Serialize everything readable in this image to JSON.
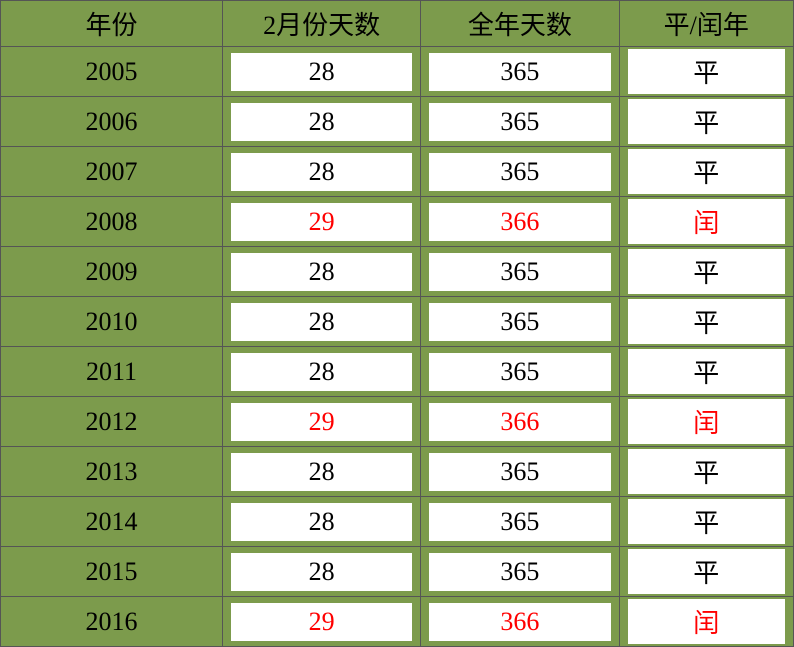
{
  "headers": {
    "year": "年份",
    "feb_days": "2月份天数",
    "year_days": "全年天数",
    "type": "平/闰年"
  },
  "rows": [
    {
      "year": "2005",
      "feb": "28",
      "days": "365",
      "type": "平",
      "leap": false
    },
    {
      "year": "2006",
      "feb": "28",
      "days": "365",
      "type": "平",
      "leap": false
    },
    {
      "year": "2007",
      "feb": "28",
      "days": "365",
      "type": "平",
      "leap": false
    },
    {
      "year": "2008",
      "feb": "29",
      "days": "366",
      "type": "闰",
      "leap": true
    },
    {
      "year": "2009",
      "feb": "28",
      "days": "365",
      "type": "平",
      "leap": false
    },
    {
      "year": "2010",
      "feb": "28",
      "days": "365",
      "type": "平",
      "leap": false
    },
    {
      "year": "2011",
      "feb": "28",
      "days": "365",
      "type": "平",
      "leap": false
    },
    {
      "year": "2012",
      "feb": "29",
      "days": "366",
      "type": "闰",
      "leap": true
    },
    {
      "year": "2013",
      "feb": "28",
      "days": "365",
      "type": "平",
      "leap": false
    },
    {
      "year": "2014",
      "feb": "28",
      "days": "365",
      "type": "平",
      "leap": false
    },
    {
      "year": "2015",
      "feb": "28",
      "days": "365",
      "type": "平",
      "leap": false
    },
    {
      "year": "2016",
      "feb": "29",
      "days": "366",
      "type": "闰",
      "leap": true
    }
  ],
  "colors": {
    "background": "#7c9b4c",
    "cell_bg": "#ffffff",
    "text": "#000000",
    "leap_text": "#ff0000",
    "border": "#555555"
  }
}
